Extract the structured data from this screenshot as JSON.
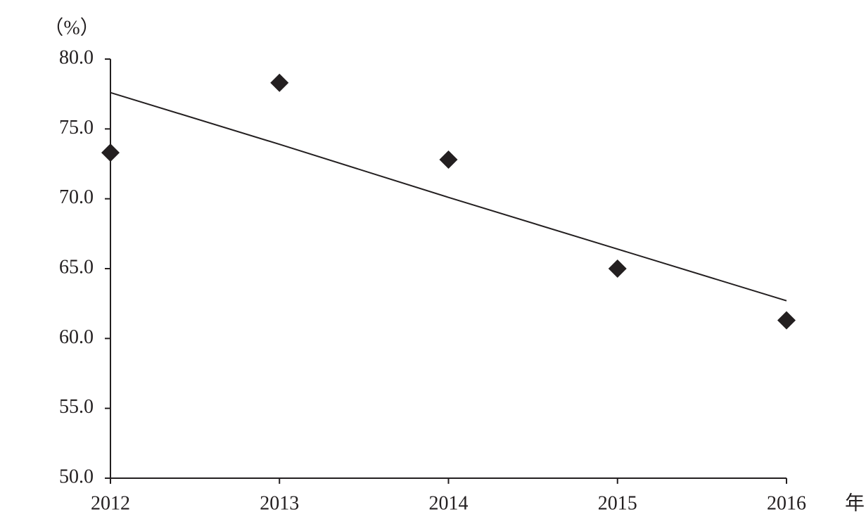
{
  "chart_data": {
    "type": "scatter",
    "y_label": "（%）",
    "x_label": "年",
    "x": [
      2012,
      2013,
      2014,
      2015,
      2016
    ],
    "series": [
      {
        "type": "scatter",
        "marker": "diamond",
        "color": "#231f20",
        "values": [
          73.3,
          78.3,
          72.8,
          65.0,
          61.3
        ]
      },
      {
        "type": "line",
        "color": "#231f20",
        "values": [
          77.6,
          73.9,
          70.1,
          66.4,
          62.7
        ]
      }
    ],
    "xlim": [
      2012,
      2016
    ],
    "xticks": [
      2012,
      2013,
      2014,
      2015,
      2016
    ],
    "ylim": [
      50,
      80
    ],
    "yticks": [
      {
        "value": 50,
        "label": "50.0"
      },
      {
        "value": 55,
        "label": "55.0"
      },
      {
        "value": 60,
        "label": "60.0"
      },
      {
        "value": 65,
        "label": "65.0"
      },
      {
        "value": 70,
        "label": "70.0"
      },
      {
        "value": 75,
        "label": "75.0"
      },
      {
        "value": 80,
        "label": "80.0"
      }
    ],
    "grid": false
  }
}
